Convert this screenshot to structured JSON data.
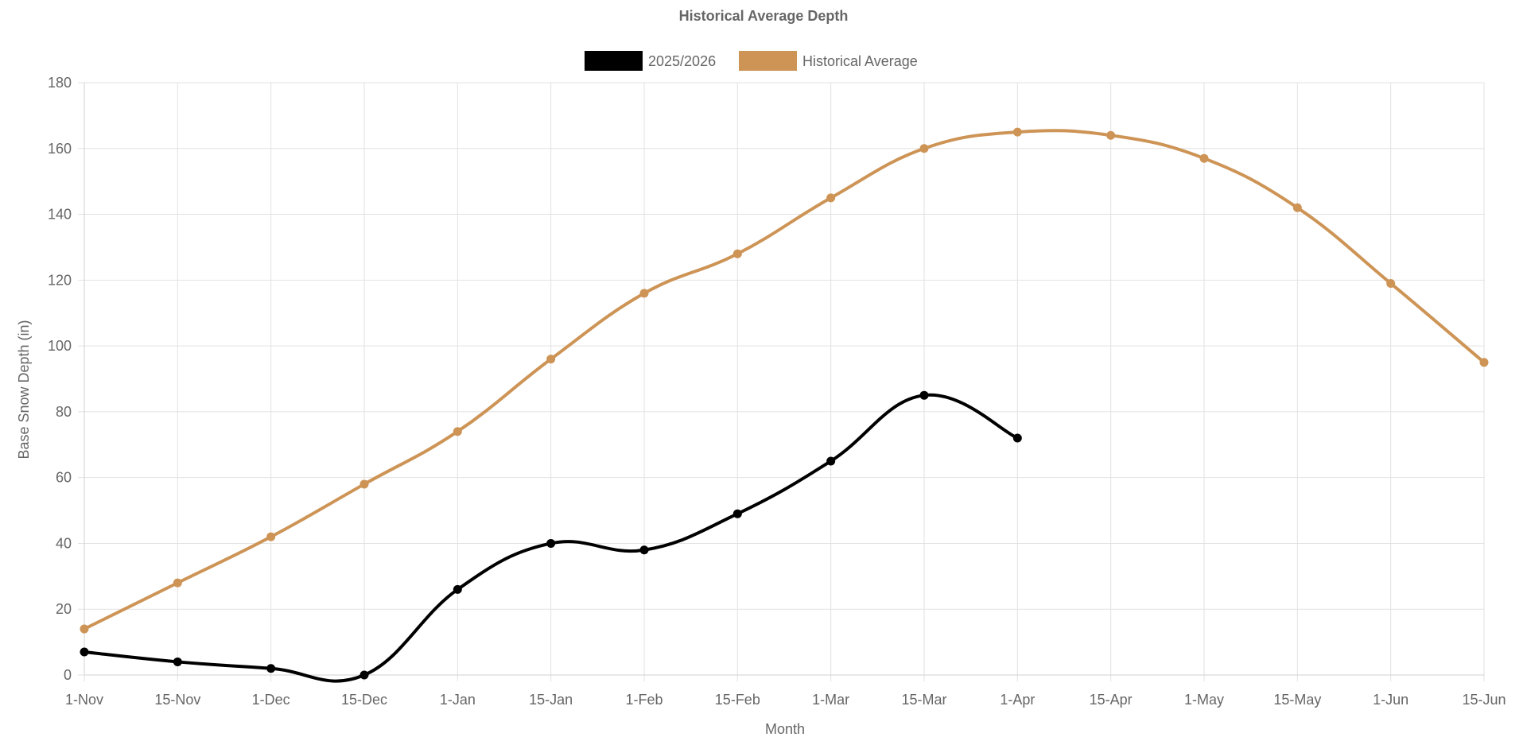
{
  "chart_data": {
    "type": "line",
    "title": "Historical Average Depth",
    "xlabel": "Month",
    "ylabel": "Base Snow Depth (in)",
    "categories": [
      "1-Nov",
      "15-Nov",
      "1-Dec",
      "15-Dec",
      "1-Jan",
      "15-Jan",
      "1-Feb",
      "15-Feb",
      "1-Mar",
      "15-Mar",
      "1-Apr",
      "15-Apr",
      "1-May",
      "15-May",
      "1-Jun",
      "15-Jun"
    ],
    "ylim": [
      0,
      180
    ],
    "yticks": [
      0,
      20,
      40,
      60,
      80,
      100,
      120,
      140,
      160,
      180
    ],
    "grid": true,
    "legend_position": "top",
    "series": [
      {
        "name": "2025/2026",
        "color": "#000000",
        "values": [
          7,
          4,
          2,
          0,
          26,
          40,
          38,
          49,
          65,
          85,
          72,
          null,
          null,
          null,
          null,
          null
        ]
      },
      {
        "name": "Historical Average",
        "color": "#cd9456",
        "values": [
          14,
          28,
          42,
          58,
          74,
          96,
          116,
          128,
          145,
          160,
          165,
          164,
          157,
          142,
          119,
          95
        ]
      }
    ]
  }
}
